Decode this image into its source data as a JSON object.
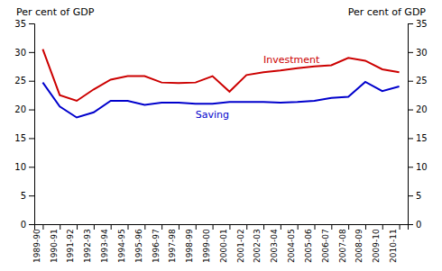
{
  "chart_data": {
    "type": "line",
    "ylabel": "Per cent of GDP",
    "y2label": "Per cent of GDP",
    "categories": [
      "1989-90",
      "1990-91",
      "1991-92",
      "1992-93",
      "1993-94",
      "1994-95",
      "1995-96",
      "1996-97",
      "1997-98",
      "1998-99",
      "1999-00",
      "2000-01",
      "2001-02",
      "2002-03",
      "2003-04",
      "2004-05",
      "2005-06",
      "2006-07",
      "2007-08",
      "2008-09",
      "2009-10",
      "2010-11"
    ],
    "series": [
      {
        "name": "Investment",
        "color": "#cc0000",
        "values": [
          30.5,
          22.5,
          21.5,
          23.5,
          25.2,
          25.8,
          25.8,
          24.7,
          24.6,
          24.7,
          25.8,
          23.1,
          26.0,
          26.5,
          26.8,
          27.2,
          27.5,
          27.7,
          29.0,
          28.5,
          27.0,
          26.5
        ]
      },
      {
        "name": "Saving",
        "color": "#0000cc",
        "values": [
          24.7,
          20.5,
          18.6,
          19.5,
          21.5,
          21.5,
          20.8,
          21.2,
          21.2,
          21.0,
          21.0,
          21.3,
          21.3,
          21.3,
          21.2,
          21.3,
          21.5,
          22.0,
          22.2,
          24.8,
          23.2,
          24.0
        ]
      }
    ],
    "ylim": [
      0,
      35
    ],
    "yticks": [
      0,
      5,
      10,
      15,
      20,
      25,
      30,
      35
    ],
    "y2lim": [
      0,
      35
    ],
    "y2ticks": [
      0,
      5,
      10,
      15,
      20,
      25,
      30,
      35
    ],
    "grid": false
  }
}
